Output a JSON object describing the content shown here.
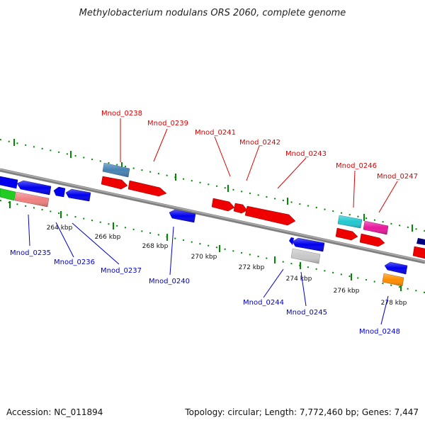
{
  "title": "Methylobacterium nodulans ORS 2060, complete genome",
  "footer": {
    "accession": "Accession: NC_011894",
    "topology": "Topology: circular; Length: 7,772,460 bp; Genes: 7,447"
  },
  "kbp_ticks": [
    "264 kbp",
    "266 kbp",
    "268 kbp",
    "270 kbp",
    "272 kbp",
    "274 kbp",
    "276 kbp",
    "278 kbp"
  ],
  "genes": [
    {
      "label": "Mnod_0238",
      "color": "#4682b4"
    },
    {
      "label": "Mnod_0239",
      "color": "#ee0000"
    },
    {
      "label": "Mnod_0241",
      "color": "#ee0000"
    },
    {
      "label": "Mnod_0242",
      "color": "#ee0000"
    },
    {
      "label": "Mnod_0243",
      "color": "#ee0000"
    },
    {
      "label": "Mnod_0246",
      "color": "#20c8d0"
    },
    {
      "label": "Mnod_0247",
      "color": "#e8189c"
    },
    {
      "label": "Mnod_0235",
      "color": "#f08080"
    },
    {
      "label": "Mnod_0236",
      "color": "#0000ee"
    },
    {
      "label": "Mnod_0237",
      "color": "#0000ee"
    },
    {
      "label": "Mnod_0240",
      "color": "#0000ee"
    },
    {
      "label": "Mnod_0244",
      "color": "#0000ee"
    },
    {
      "label": "Mnod_0245",
      "color": "#c8c8c8"
    },
    {
      "label": "Mnod_0248",
      "color": "#ff8c00"
    }
  ],
  "colors": {
    "backbone": "#808080",
    "tick_green": "#008800",
    "forward_label": "#dd0000",
    "reverse_label": "#0000cc"
  }
}
